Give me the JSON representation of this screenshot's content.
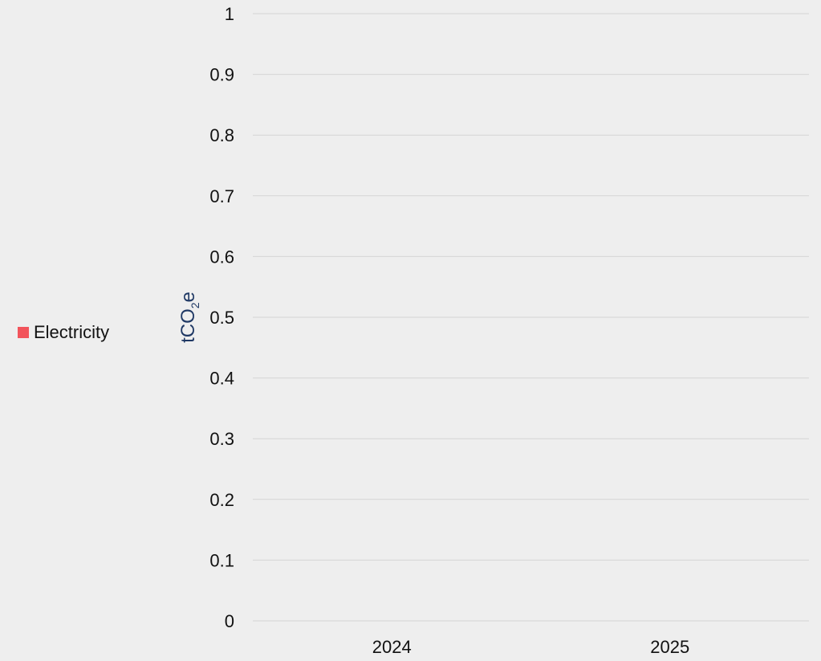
{
  "chart_data": {
    "type": "bar",
    "categories": [
      "2024",
      "2025"
    ],
    "series": [
      {
        "name": "Electricity",
        "values": [
          0,
          0
        ],
        "color": "#f2545b"
      }
    ],
    "title": "",
    "xlabel": "",
    "ylabel": "tCO2e",
    "ylabel_parts": {
      "main": "tCO",
      "sub": "2",
      "tail": "e"
    },
    "ylim": [
      0,
      1
    ],
    "yticks": [
      "0",
      "0.1",
      "0.2",
      "0.3",
      "0.4",
      "0.5",
      "0.6",
      "0.7",
      "0.8",
      "0.9",
      "1"
    ],
    "grid": true,
    "legend_position": "left"
  },
  "colors": {
    "background": "#eeeeee",
    "grid": "#d4d4d4",
    "axis_label": "#1f3864",
    "tick_text": "#111111"
  }
}
